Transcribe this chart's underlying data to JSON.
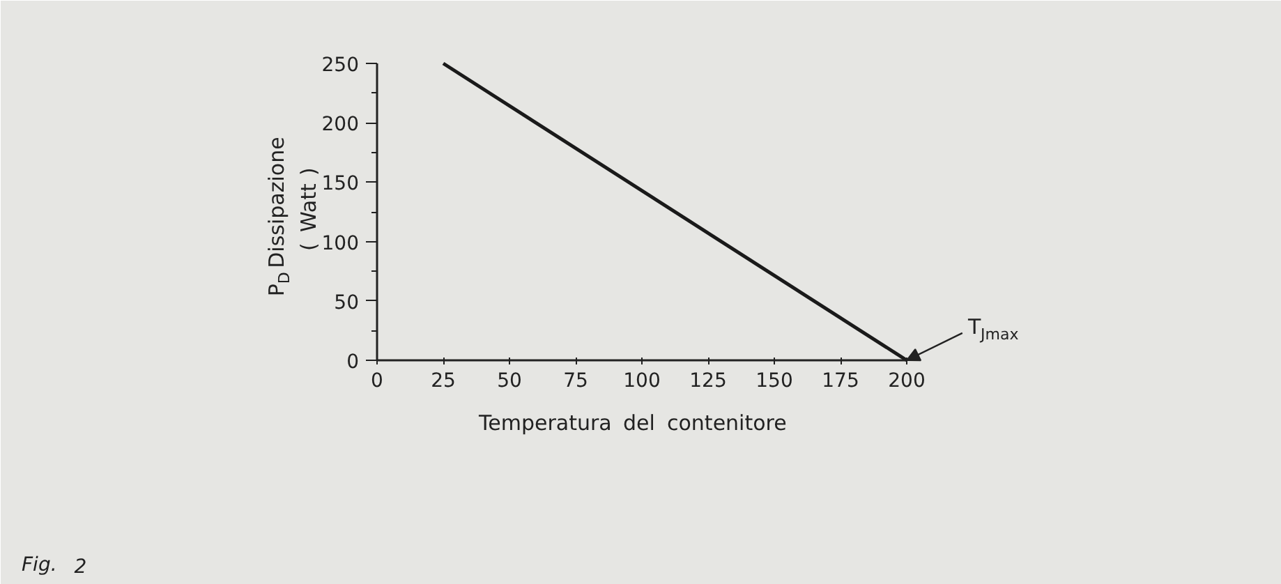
{
  "chart_data": {
    "type": "line",
    "xlabel": "Temperatura del contenitore",
    "ylabel": "P$_{D}$ Dissipazione\n( Watt )",
    "x": [
      25,
      200
    ],
    "series": [
      {
        "color": "#1a1a1a",
        "values": [
          250,
          0
        ]
      }
    ],
    "xlim": [
      0,
      200
    ],
    "ylim": [
      0,
      250
    ],
    "xticks": [
      0,
      25,
      50,
      75,
      100,
      125,
      150,
      175,
      200
    ],
    "yticks": [
      0,
      50,
      100,
      150,
      200,
      250
    ],
    "marker": "none",
    "line_style": "solid",
    "annotations": [
      {
        "text": "T$_{Jmax}$",
        "x": 200,
        "y": 0
      },
      "Fig. 2"
    ]
  }
}
